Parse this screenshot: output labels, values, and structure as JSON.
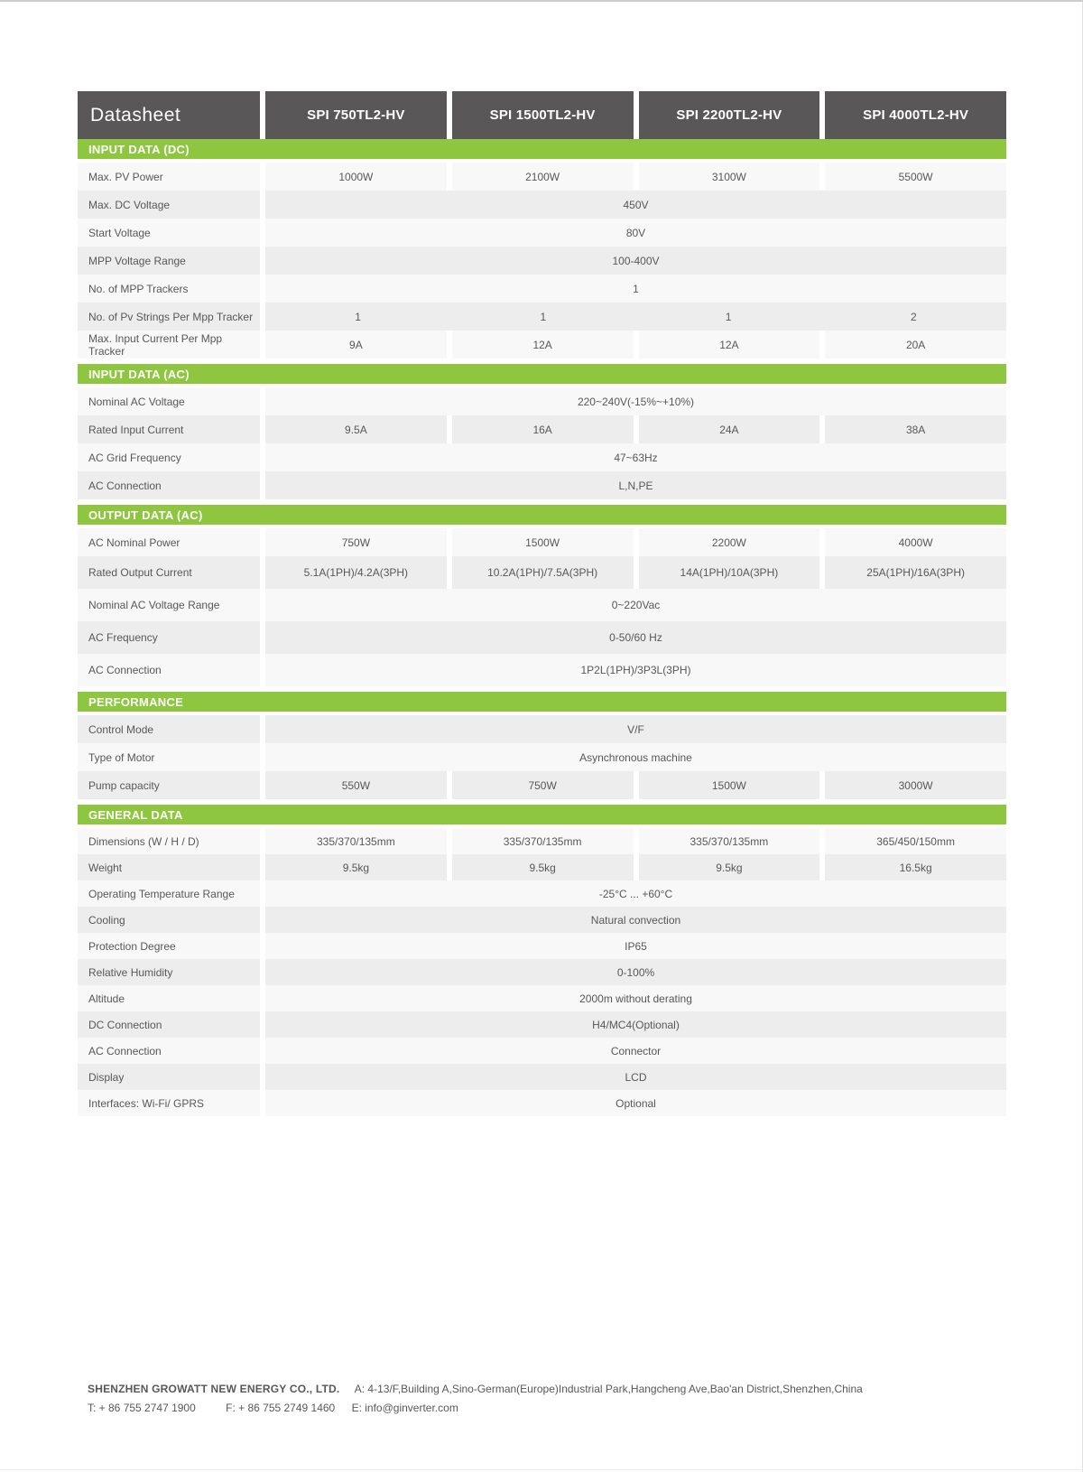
{
  "colors": {
    "accent_green": "#8ec63f",
    "header_gray": "#595757",
    "row_light": "#f8f8f8",
    "row_dark": "#ededed"
  },
  "header": {
    "title": "Datasheet",
    "models": [
      "SPI 750TL2-HV",
      "SPI 1500TL2-HV",
      "SPI 2200TL2-HV",
      "SPI 4000TL2-HV"
    ]
  },
  "sections": [
    {
      "key": "input-dc",
      "title": "INPUT DATA (DC)",
      "stripe_start": "light",
      "rows": [
        {
          "label": "Max. PV Power",
          "type": "cols",
          "values": [
            "1000W",
            "2100W",
            "3100W",
            "5500W"
          ]
        },
        {
          "label": "Max. DC Voltage",
          "type": "span",
          "value": "450V"
        },
        {
          "label": "Start Voltage",
          "type": "span",
          "value": "80V"
        },
        {
          "label": "MPP Voltage Range",
          "type": "span",
          "value": "100-400V"
        },
        {
          "label": "No. of MPP Trackers",
          "type": "span",
          "value": "1"
        },
        {
          "label": "No. of Pv Strings Per Mpp Tracker",
          "type": "cols-nogap",
          "values": [
            "1",
            "1",
            "1",
            "2"
          ]
        },
        {
          "label": "Max. Input Current Per Mpp Tracker",
          "type": "cols",
          "values": [
            "9A",
            "12A",
            "12A",
            "20A"
          ]
        }
      ]
    },
    {
      "key": "input-ac",
      "title": "INPUT DATA (AC)",
      "stripe_start": "light",
      "rows": [
        {
          "label": "Nominal AC Voltage",
          "type": "span",
          "value": "220~240V(-15%~+10%)"
        },
        {
          "label": "Rated Input Current",
          "type": "cols",
          "values": [
            "9.5A",
            "16A",
            "24A",
            "38A"
          ]
        },
        {
          "label": "AC Grid Frequency",
          "type": "span",
          "value": "47~63Hz"
        },
        {
          "label": "AC Connection",
          "type": "span",
          "value": "L,N,PE"
        }
      ]
    },
    {
      "key": "output-ac",
      "title": "OUTPUT DATA (AC)",
      "stripe_start": "light",
      "rows": [
        {
          "label": "AC Nominal Power",
          "type": "cols",
          "values": [
            "750W",
            "1500W",
            "2200W",
            "4000W"
          ]
        },
        {
          "label": "Rated Output Current",
          "type": "cols",
          "values": [
            "5.1A(1PH)/4.2A(3PH)",
            "10.2A(1PH)/7.5A(3PH)",
            "14A(1PH)/10A(3PH)",
            "25A(1PH)/16A(3PH)"
          ]
        },
        {
          "label": "Nominal AC Voltage Range",
          "type": "span",
          "value": "0~220Vac"
        },
        {
          "label": "AC Frequency",
          "type": "span",
          "value": "0-50/60 Hz"
        },
        {
          "label": "AC Connection",
          "type": "span",
          "value": "1P2L(1PH)/3P3L(3PH)"
        }
      ]
    },
    {
      "key": "performance",
      "title": "PERFORMANCE",
      "stripe_start": "dark",
      "rows": [
        {
          "label": "Control Mode",
          "type": "span",
          "value": "V/F"
        },
        {
          "label": "Type of Motor",
          "type": "span",
          "value": "Asynchronous machine"
        },
        {
          "label": "Pump capacity",
          "type": "cols",
          "values": [
            "550W",
            "750W",
            "1500W",
            "3000W"
          ]
        }
      ]
    },
    {
      "key": "general",
      "title": "GENERAL DATA",
      "stripe_start": "light",
      "rows": [
        {
          "label": "Dimensions (W / H / D)",
          "type": "cols",
          "values": [
            "335/370/135mm",
            "335/370/135mm",
            "335/370/135mm",
            "365/450/150mm"
          ]
        },
        {
          "label": "Weight",
          "type": "cols",
          "values": [
            "9.5kg",
            "9.5kg",
            "9.5kg",
            "16.5kg"
          ]
        },
        {
          "label": "Operating Temperature Range",
          "type": "span",
          "value": "-25°C ... +60°C"
        },
        {
          "label": "Cooling",
          "type": "span",
          "value": "Natural convection"
        },
        {
          "label": "Protection Degree",
          "type": "span",
          "value": "IP65"
        },
        {
          "label": "Relative Humidity",
          "type": "span",
          "value": "0-100%"
        },
        {
          "label": "Altitude",
          "type": "span",
          "value": "2000m without derating"
        },
        {
          "label": "DC Connection",
          "type": "span",
          "value": "H4/MC4(Optional)"
        },
        {
          "label": "AC Connection",
          "type": "span",
          "value": "Connector"
        },
        {
          "label": "Display",
          "type": "span",
          "value": "LCD"
        },
        {
          "label": "Interfaces: Wi-Fi/ GPRS",
          "type": "span",
          "value": "Optional"
        }
      ]
    }
  ],
  "footer": {
    "company": "SHENZHEN GROWATT NEW ENERGY CO., LTD.",
    "address": "A: 4-13/F,Building A,Sino-German(Europe)Industrial Park,Hangcheng Ave,Bao'an District,Shenzhen,China",
    "tel": "T:  + 86 755 2747 1900",
    "fax": "F:  + 86 755 2749 1460",
    "email": "E:  info@ginverter.com"
  }
}
